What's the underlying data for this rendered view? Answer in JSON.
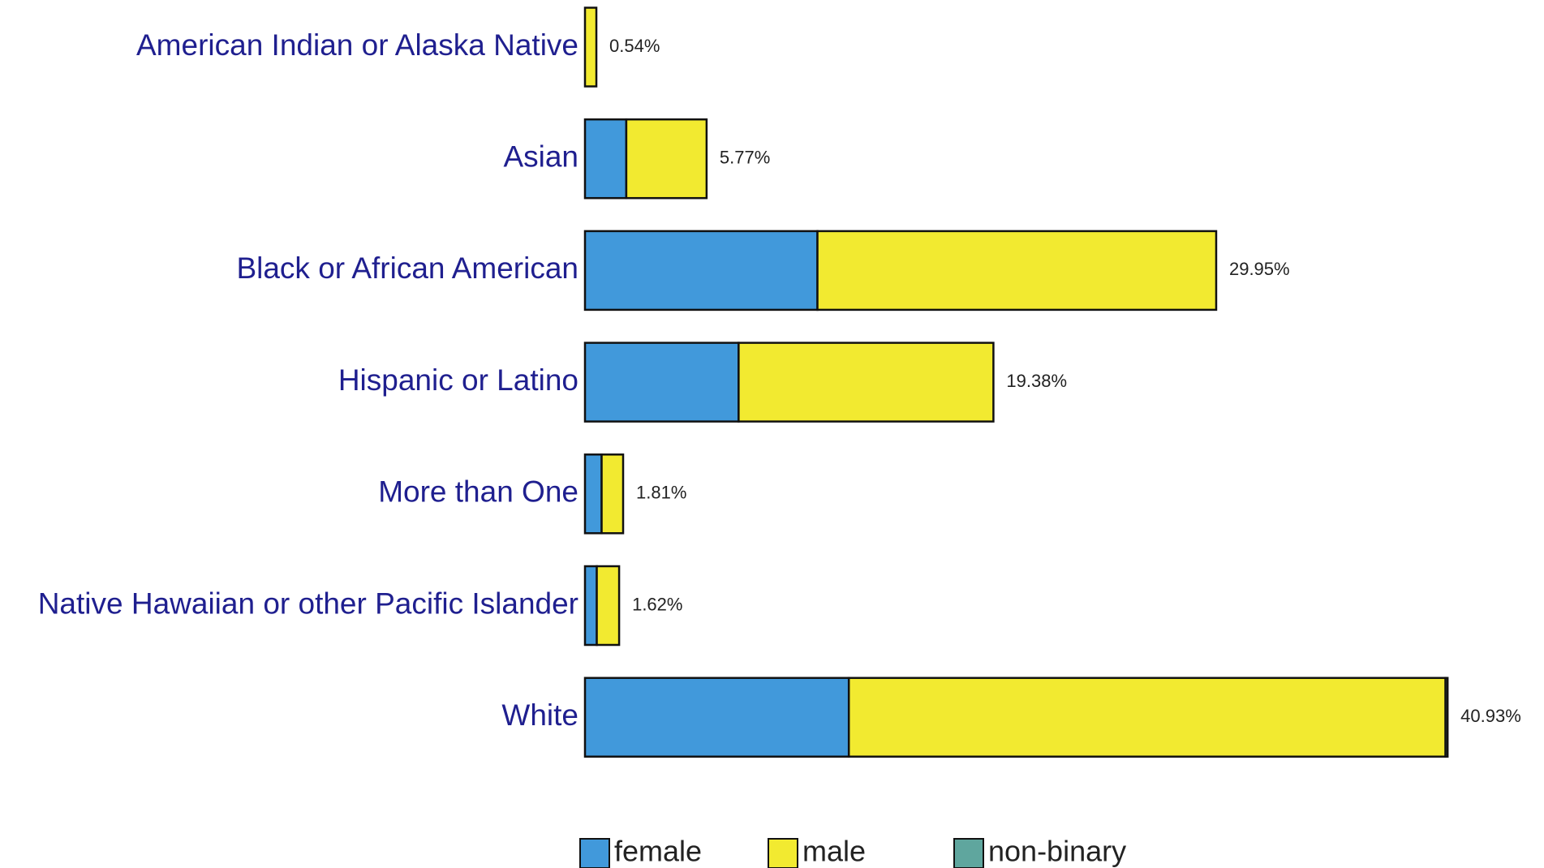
{
  "chart_data": {
    "type": "stacked-barh",
    "categories": [
      "American Indian or Alaska Native",
      "Asian",
      "Black or African American",
      "Hispanic or Latino",
      "More than One",
      "Native Hawaiian or other Pacific Islander",
      "White"
    ],
    "series": [
      {
        "name": "female",
        "color": "#4199db",
        "values": [
          0,
          1.96,
          11.03,
          7.29,
          0.79,
          0.56,
          12.52
        ]
      },
      {
        "name": "male",
        "color": "#f2ea30",
        "values": [
          0.54,
          3.81,
          18.92,
          12.09,
          1.02,
          1.06,
          28.31
        ]
      },
      {
        "name": "non-binary",
        "color": "#5fa69e",
        "values": [
          0,
          0,
          0,
          0,
          0,
          0,
          0.1
        ]
      }
    ],
    "totals": [
      0.54,
      5.77,
      29.95,
      19.38,
      1.81,
      1.62,
      40.93
    ],
    "total_labels": [
      "0.54%",
      "5.77%",
      "29.95%",
      "19.38%",
      "1.81%",
      "1.62%",
      "40.93%"
    ],
    "xlim": [
      0,
      41
    ]
  }
}
